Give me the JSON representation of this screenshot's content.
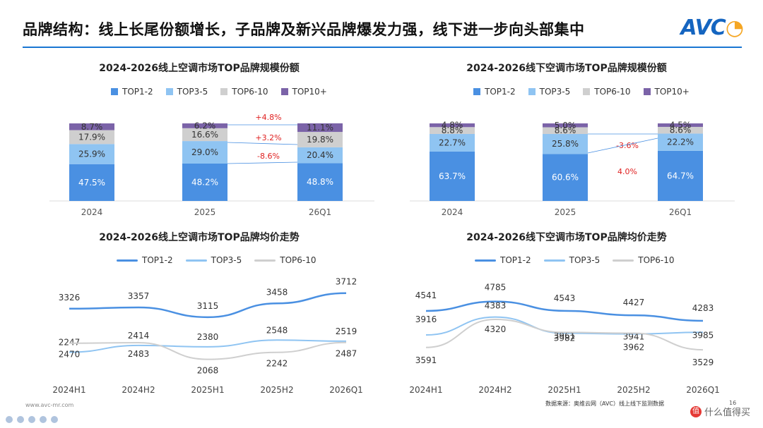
{
  "header": {
    "title": "品牌结构：线上长尾份额增长，子品牌及新兴品牌爆发力强，线下进一步向头部集中",
    "logo_text": "AVC"
  },
  "colors": {
    "accent": "#1976d2",
    "top12": "#4a90e2",
    "top35": "#8fc4f2",
    "top610": "#cfcfcf",
    "top10plus": "#7b63a8",
    "annotation_red": "#e02020"
  },
  "chart_data": [
    {
      "type": "bar",
      "stacked": true,
      "title": "2024-2026线上空调市场TOP品牌规模份额",
      "categories": [
        "2024",
        "2025",
        "26Q1"
      ],
      "series": [
        {
          "name": "TOP1-2",
          "values": [
            47.5,
            48.2,
            48.8
          ],
          "labels": [
            "47.5%",
            "48.2%",
            "48.8%"
          ]
        },
        {
          "name": "TOP3-5",
          "values": [
            25.9,
            29.0,
            20.4
          ],
          "labels": [
            "25.9%",
            "29.0%",
            "20.4%"
          ]
        },
        {
          "name": "TOP6-10",
          "values": [
            17.9,
            16.6,
            19.8
          ],
          "labels": [
            "17.9%",
            "16.6%",
            "19.8%"
          ]
        },
        {
          "name": "TOP10+",
          "values": [
            8.7,
            6.2,
            11.1
          ],
          "labels": [
            "8.7%",
            "6.2%",
            "11.1%"
          ]
        }
      ],
      "annotations": [
        "+4.8%",
        "+3.2%",
        "-8.6%"
      ],
      "legend": "top"
    },
    {
      "type": "bar",
      "stacked": true,
      "title": "2024-2026线下空调市场TOP品牌规模份额",
      "categories": [
        "2024",
        "2025",
        "26Q1"
      ],
      "series": [
        {
          "name": "TOP1-2",
          "values": [
            63.7,
            60.6,
            64.7
          ],
          "labels": [
            "63.7%",
            "60.6%",
            "64.7%"
          ]
        },
        {
          "name": "TOP3-5",
          "values": [
            22.7,
            25.8,
            22.2
          ],
          "labels": [
            "22.7%",
            "25.8%",
            "22.2%"
          ]
        },
        {
          "name": "TOP6-10",
          "values": [
            8.8,
            8.6,
            8.6
          ],
          "labels": [
            "8.8%",
            "8.6%",
            "8.6%"
          ]
        },
        {
          "name": "TOP10+",
          "values": [
            4.8,
            5.0,
            4.5
          ],
          "labels": [
            "4.8%",
            "5.0%",
            "4.5%"
          ]
        }
      ],
      "annotations": [
        "-3.6%",
        "4.0%"
      ],
      "legend": "top"
    },
    {
      "type": "line",
      "title": "2024-2026线上空调市场TOP品牌均价走势",
      "categories": [
        "2024H1",
        "2024H2",
        "2025H1",
        "2025H2",
        "2026Q1"
      ],
      "series": [
        {
          "name": "TOP1-2",
          "values": [
            3326,
            3357,
            3115,
            3458,
            3712
          ]
        },
        {
          "name": "TOP3-5",
          "values": [
            2247,
            2414,
            2380,
            2548,
            2519
          ]
        },
        {
          "name": "TOP6-10",
          "values": [
            2470,
            2483,
            2068,
            2242,
            2487
          ]
        }
      ],
      "ylim": [
        1800,
        3900
      ],
      "legend": "top"
    },
    {
      "type": "line",
      "title": "2024-2026线下空调市场TOP品牌均价走势",
      "categories": [
        "2024H1",
        "2024H2",
        "2025H1",
        "2025H2",
        "2026Q1"
      ],
      "series": [
        {
          "name": "TOP1-2",
          "values": [
            4541,
            4785,
            4543,
            4427,
            4283
          ]
        },
        {
          "name": "TOP3-5",
          "values": [
            3916,
            4383,
            3961,
            3941,
            3985
          ]
        },
        {
          "name": "TOP6-10",
          "values": [
            3591,
            4320,
            3982,
            3962,
            3529
          ]
        }
      ],
      "ylim": [
        3000,
        5200
      ],
      "legend": "top"
    }
  ],
  "footer": {
    "website": "www.avc-mr.com",
    "source": "数据来源：奥维云网（AVC）线上线下监测数据",
    "page_number": "16",
    "badge_text": "什么值得买",
    "badge_icon": "值"
  }
}
